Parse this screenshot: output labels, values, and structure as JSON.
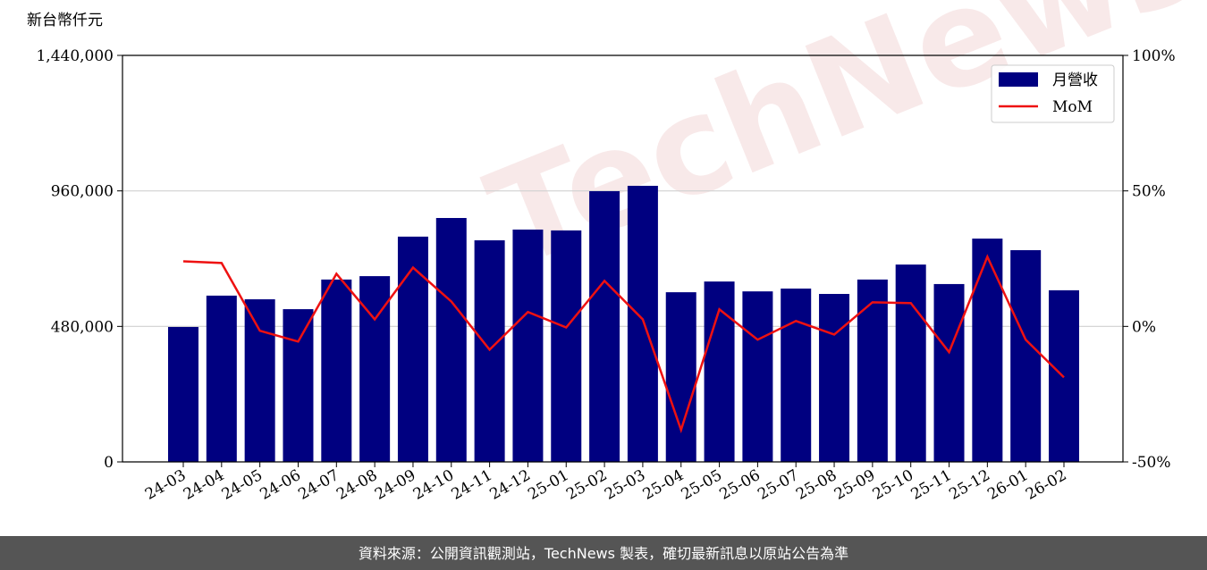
{
  "chart_data": {
    "type": "bar_line",
    "y_label": "新台幣仟元",
    "watermark": "TechNews",
    "source": "資料來源：公開資訊觀測站，TechNews 製表，確切最新訊息以原站公告為準",
    "categories": [
      "24-03",
      "24-04",
      "24-05",
      "24-06",
      "24-07",
      "24-08",
      "24-09",
      "24-10",
      "24-11",
      "24-12",
      "25-01",
      "25-02",
      "25-03",
      "25-04",
      "25-05",
      "25-06",
      "25-07",
      "25-08",
      "25-09",
      "25-10",
      "25-11",
      "25-12",
      "26-01",
      "26-02"
    ],
    "series": [
      {
        "name": "月營收",
        "type": "bar",
        "axis": "y",
        "color": "#000080",
        "values": [
          478000,
          589000,
          576000,
          541000,
          646000,
          658000,
          798000,
          864000,
          785000,
          823000,
          820000,
          959000,
          978000,
          601000,
          639000,
          604000,
          614000,
          595000,
          646000,
          699000,
          630000,
          791000,
          750000,
          608000
        ]
      },
      {
        "name": "MoM",
        "type": "line",
        "axis": "y2",
        "color": "#ee1111",
        "values": [
          24.0,
          23.4,
          -1.6,
          -5.6,
          19.4,
          2.6,
          21.7,
          9.2,
          -8.6,
          5.3,
          -0.4,
          16.8,
          2.6,
          -38.2,
          6.3,
          -4.9,
          2.0,
          -3.0,
          8.9,
          8.6,
          -9.5,
          25.7,
          -4.9,
          -18.8
        ]
      }
    ],
    "ylim": [
      0,
      1440000
    ],
    "yticks": [
      0,
      {
        "value": 480000,
        "label": "480,000"
      },
      {
        "value": 960000,
        "label": "960,000"
      },
      {
        "value": 1440000,
        "label": "1,440,000"
      }
    ],
    "y2lim": [
      -50,
      100
    ],
    "y2ticks": [
      {
        "value": -50,
        "label": "-50%"
      },
      {
        "value": 0,
        "label": "0%"
      },
      {
        "value": 50,
        "label": "50%"
      },
      {
        "value": 100,
        "label": "100%"
      }
    ],
    "grid": true,
    "legend": "upper right"
  }
}
